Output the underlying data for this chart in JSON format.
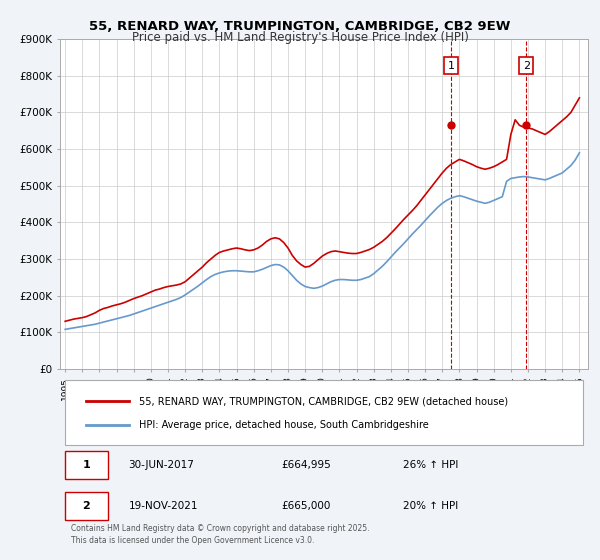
{
  "title": "55, RENARD WAY, TRUMPINGTON, CAMBRIDGE, CB2 9EW",
  "subtitle": "Price paid vs. HM Land Registry's House Price Index (HPI)",
  "legend_line1": "55, RENARD WAY, TRUMPINGTON, CAMBRIDGE, CB2 9EW (detached house)",
  "legend_line2": "HPI: Average price, detached house, South Cambridgeshire",
  "footer": "Contains HM Land Registry data © Crown copyright and database right 2025.\nThis data is licensed under the Open Government Licence v3.0.",
  "sale1_label": "1",
  "sale1_date": "30-JUN-2017",
  "sale1_price": "£664,995",
  "sale1_hpi": "26% ↑ HPI",
  "sale2_label": "2",
  "sale2_date": "19-NOV-2021",
  "sale2_price": "£665,000",
  "sale2_hpi": "20% ↑ HPI",
  "sale1_x": 2017.5,
  "sale2_x": 2021.9,
  "sale1_y": 664995,
  "sale2_y": 665000,
  "red_line_color": "#cc0000",
  "blue_line_color": "#6699cc",
  "vline_color": "#cc0000",
  "background_color": "#f0f4f8",
  "plot_bg_color": "#ffffff",
  "ylim": [
    0,
    900000
  ],
  "xlim_start": 1995,
  "xlim_end": 2025.5,
  "yticks": [
    0,
    100000,
    200000,
    300000,
    400000,
    500000,
    600000,
    700000,
    800000,
    900000
  ],
  "ytick_labels": [
    "£0",
    "£100K",
    "£200K",
    "£300K",
    "£400K",
    "£500K",
    "£600K",
    "£700K",
    "£800K",
    "£900K"
  ],
  "xticks": [
    1995,
    1996,
    1997,
    1998,
    1999,
    2000,
    2001,
    2002,
    2003,
    2004,
    2005,
    2006,
    2007,
    2008,
    2009,
    2010,
    2011,
    2012,
    2013,
    2014,
    2015,
    2016,
    2017,
    2018,
    2019,
    2020,
    2021,
    2022,
    2023,
    2024,
    2025
  ],
  "red_x": [
    1995.0,
    1995.25,
    1995.5,
    1995.75,
    1996.0,
    1996.25,
    1996.5,
    1996.75,
    1997.0,
    1997.25,
    1997.5,
    1997.75,
    1998.0,
    1998.25,
    1998.5,
    1998.75,
    1999.0,
    1999.25,
    1999.5,
    1999.75,
    2000.0,
    2000.25,
    2000.5,
    2000.75,
    2001.0,
    2001.25,
    2001.5,
    2001.75,
    2002.0,
    2002.25,
    2002.5,
    2002.75,
    2003.0,
    2003.25,
    2003.5,
    2003.75,
    2004.0,
    2004.25,
    2004.5,
    2004.75,
    2005.0,
    2005.25,
    2005.5,
    2005.75,
    2006.0,
    2006.25,
    2006.5,
    2006.75,
    2007.0,
    2007.25,
    2007.5,
    2007.75,
    2008.0,
    2008.25,
    2008.5,
    2008.75,
    2009.0,
    2009.25,
    2009.5,
    2009.75,
    2010.0,
    2010.25,
    2010.5,
    2010.75,
    2011.0,
    2011.25,
    2011.5,
    2011.75,
    2012.0,
    2012.25,
    2012.5,
    2012.75,
    2013.0,
    2013.25,
    2013.5,
    2013.75,
    2014.0,
    2014.25,
    2014.5,
    2014.75,
    2015.0,
    2015.25,
    2015.5,
    2015.75,
    2016.0,
    2016.25,
    2016.5,
    2016.75,
    2017.0,
    2017.25,
    2017.5,
    2017.75,
    2018.0,
    2018.25,
    2018.5,
    2018.75,
    2019.0,
    2019.25,
    2019.5,
    2019.75,
    2020.0,
    2020.25,
    2020.5,
    2020.75,
    2021.0,
    2021.25,
    2021.5,
    2021.75,
    2022.0,
    2022.25,
    2022.5,
    2022.75,
    2023.0,
    2023.25,
    2023.5,
    2023.75,
    2024.0,
    2024.25,
    2024.5,
    2024.75,
    2025.0
  ],
  "red_y": [
    130000,
    133000,
    136000,
    138000,
    140000,
    143000,
    148000,
    153000,
    160000,
    165000,
    168000,
    172000,
    175000,
    178000,
    182000,
    187000,
    192000,
    196000,
    200000,
    205000,
    210000,
    215000,
    218000,
    222000,
    225000,
    227000,
    229000,
    232000,
    238000,
    248000,
    258000,
    268000,
    278000,
    290000,
    300000,
    310000,
    318000,
    322000,
    325000,
    328000,
    330000,
    328000,
    325000,
    323000,
    325000,
    330000,
    338000,
    348000,
    355000,
    358000,
    355000,
    345000,
    330000,
    310000,
    295000,
    285000,
    278000,
    280000,
    288000,
    298000,
    308000,
    315000,
    320000,
    322000,
    320000,
    318000,
    316000,
    315000,
    315000,
    318000,
    322000,
    326000,
    332000,
    340000,
    348000,
    358000,
    370000,
    382000,
    395000,
    408000,
    420000,
    432000,
    445000,
    460000,
    475000,
    490000,
    505000,
    520000,
    535000,
    548000,
    558000,
    565000,
    572000,
    568000,
    563000,
    558000,
    552000,
    548000,
    545000,
    548000,
    552000,
    558000,
    565000,
    572000,
    640000,
    680000,
    665000,
    660000,
    658000,
    655000,
    650000,
    645000,
    640000,
    648000,
    658000,
    668000,
    678000,
    688000,
    700000,
    720000,
    740000
  ],
  "blue_x": [
    1995.0,
    1995.25,
    1995.5,
    1995.75,
    1996.0,
    1996.25,
    1996.5,
    1996.75,
    1997.0,
    1997.25,
    1997.5,
    1997.75,
    1998.0,
    1998.25,
    1998.5,
    1998.75,
    1999.0,
    1999.25,
    1999.5,
    1999.75,
    2000.0,
    2000.25,
    2000.5,
    2000.75,
    2001.0,
    2001.25,
    2001.5,
    2001.75,
    2002.0,
    2002.25,
    2002.5,
    2002.75,
    2003.0,
    2003.25,
    2003.5,
    2003.75,
    2004.0,
    2004.25,
    2004.5,
    2004.75,
    2005.0,
    2005.25,
    2005.5,
    2005.75,
    2006.0,
    2006.25,
    2006.5,
    2006.75,
    2007.0,
    2007.25,
    2007.5,
    2007.75,
    2008.0,
    2008.25,
    2008.5,
    2008.75,
    2009.0,
    2009.25,
    2009.5,
    2009.75,
    2010.0,
    2010.25,
    2010.5,
    2010.75,
    2011.0,
    2011.25,
    2011.5,
    2011.75,
    2012.0,
    2012.25,
    2012.5,
    2012.75,
    2013.0,
    2013.25,
    2013.5,
    2013.75,
    2014.0,
    2014.25,
    2014.5,
    2014.75,
    2015.0,
    2015.25,
    2015.5,
    2015.75,
    2016.0,
    2016.25,
    2016.5,
    2016.75,
    2017.0,
    2017.25,
    2017.5,
    2017.75,
    2018.0,
    2018.25,
    2018.5,
    2018.75,
    2019.0,
    2019.25,
    2019.5,
    2019.75,
    2020.0,
    2020.25,
    2020.5,
    2020.75,
    2021.0,
    2021.25,
    2021.5,
    2021.75,
    2022.0,
    2022.25,
    2022.5,
    2022.75,
    2023.0,
    2023.25,
    2023.5,
    2023.75,
    2024.0,
    2024.25,
    2024.5,
    2024.75,
    2025.0
  ],
  "blue_y": [
    108000,
    110000,
    112000,
    114000,
    116000,
    118000,
    120000,
    122000,
    125000,
    128000,
    131000,
    134000,
    137000,
    140000,
    143000,
    146000,
    150000,
    154000,
    158000,
    162000,
    166000,
    170000,
    174000,
    178000,
    182000,
    186000,
    190000,
    195000,
    202000,
    210000,
    218000,
    226000,
    235000,
    244000,
    252000,
    258000,
    262000,
    265000,
    267000,
    268000,
    268000,
    267000,
    266000,
    265000,
    265000,
    268000,
    272000,
    277000,
    282000,
    285000,
    284000,
    278000,
    268000,
    255000,
    242000,
    232000,
    225000,
    222000,
    220000,
    222000,
    226000,
    232000,
    238000,
    242000,
    244000,
    244000,
    243000,
    242000,
    242000,
    244000,
    248000,
    252000,
    260000,
    270000,
    280000,
    292000,
    305000,
    318000,
    330000,
    342000,
    355000,
    368000,
    380000,
    392000,
    405000,
    418000,
    430000,
    442000,
    452000,
    460000,
    466000,
    470000,
    473000,
    470000,
    466000,
    462000,
    458000,
    455000,
    452000,
    455000,
    460000,
    465000,
    470000,
    512000,
    520000,
    522000,
    524000,
    525000,
    524000,
    522000,
    520000,
    518000,
    516000,
    520000,
    525000,
    530000,
    535000,
    545000,
    555000,
    570000,
    590000
  ]
}
